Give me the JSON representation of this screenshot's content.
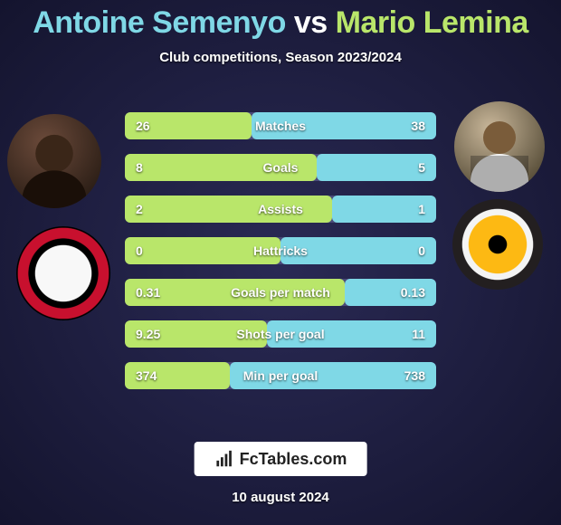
{
  "title": {
    "player1": "Antoine Semenyo",
    "vs": "vs",
    "player2": "Mario Lemina",
    "color1": "#7fd8e6",
    "color_vs": "#ffffff",
    "color2": "#b9e66a"
  },
  "subtitle": "Club competitions, Season 2023/2024",
  "player1_avatar_name": "antoine-semenyo-photo",
  "player2_avatar_name": "mario-lemina-photo",
  "player1_crest_name": "bournemouth-crest",
  "player2_crest_name": "wolves-crest",
  "bars": {
    "color_left": "#b9e66a",
    "color_right": "#7fd8e6",
    "track_color": "#4a4a7a",
    "rows": [
      {
        "label": "Matches",
        "left": "26",
        "right": "38",
        "pct_left": 40.6,
        "pct_right": 59.4
      },
      {
        "label": "Goals",
        "left": "8",
        "right": "5",
        "pct_left": 61.5,
        "pct_right": 38.5
      },
      {
        "label": "Assists",
        "left": "2",
        "right": "1",
        "pct_left": 66.7,
        "pct_right": 33.3
      },
      {
        "label": "Hattricks",
        "left": "0",
        "right": "0",
        "pct_left": 50.0,
        "pct_right": 50.0
      },
      {
        "label": "Goals per match",
        "left": "0.31",
        "right": "0.13",
        "pct_left": 70.5,
        "pct_right": 29.5
      },
      {
        "label": "Shots per goal",
        "left": "9.25",
        "right": "11",
        "pct_left": 45.7,
        "pct_right": 54.3
      },
      {
        "label": "Min per goal",
        "left": "374",
        "right": "738",
        "pct_left": 33.6,
        "pct_right": 66.4
      }
    ]
  },
  "footer_brand": "FcTables.com",
  "date": "10 august 2024"
}
